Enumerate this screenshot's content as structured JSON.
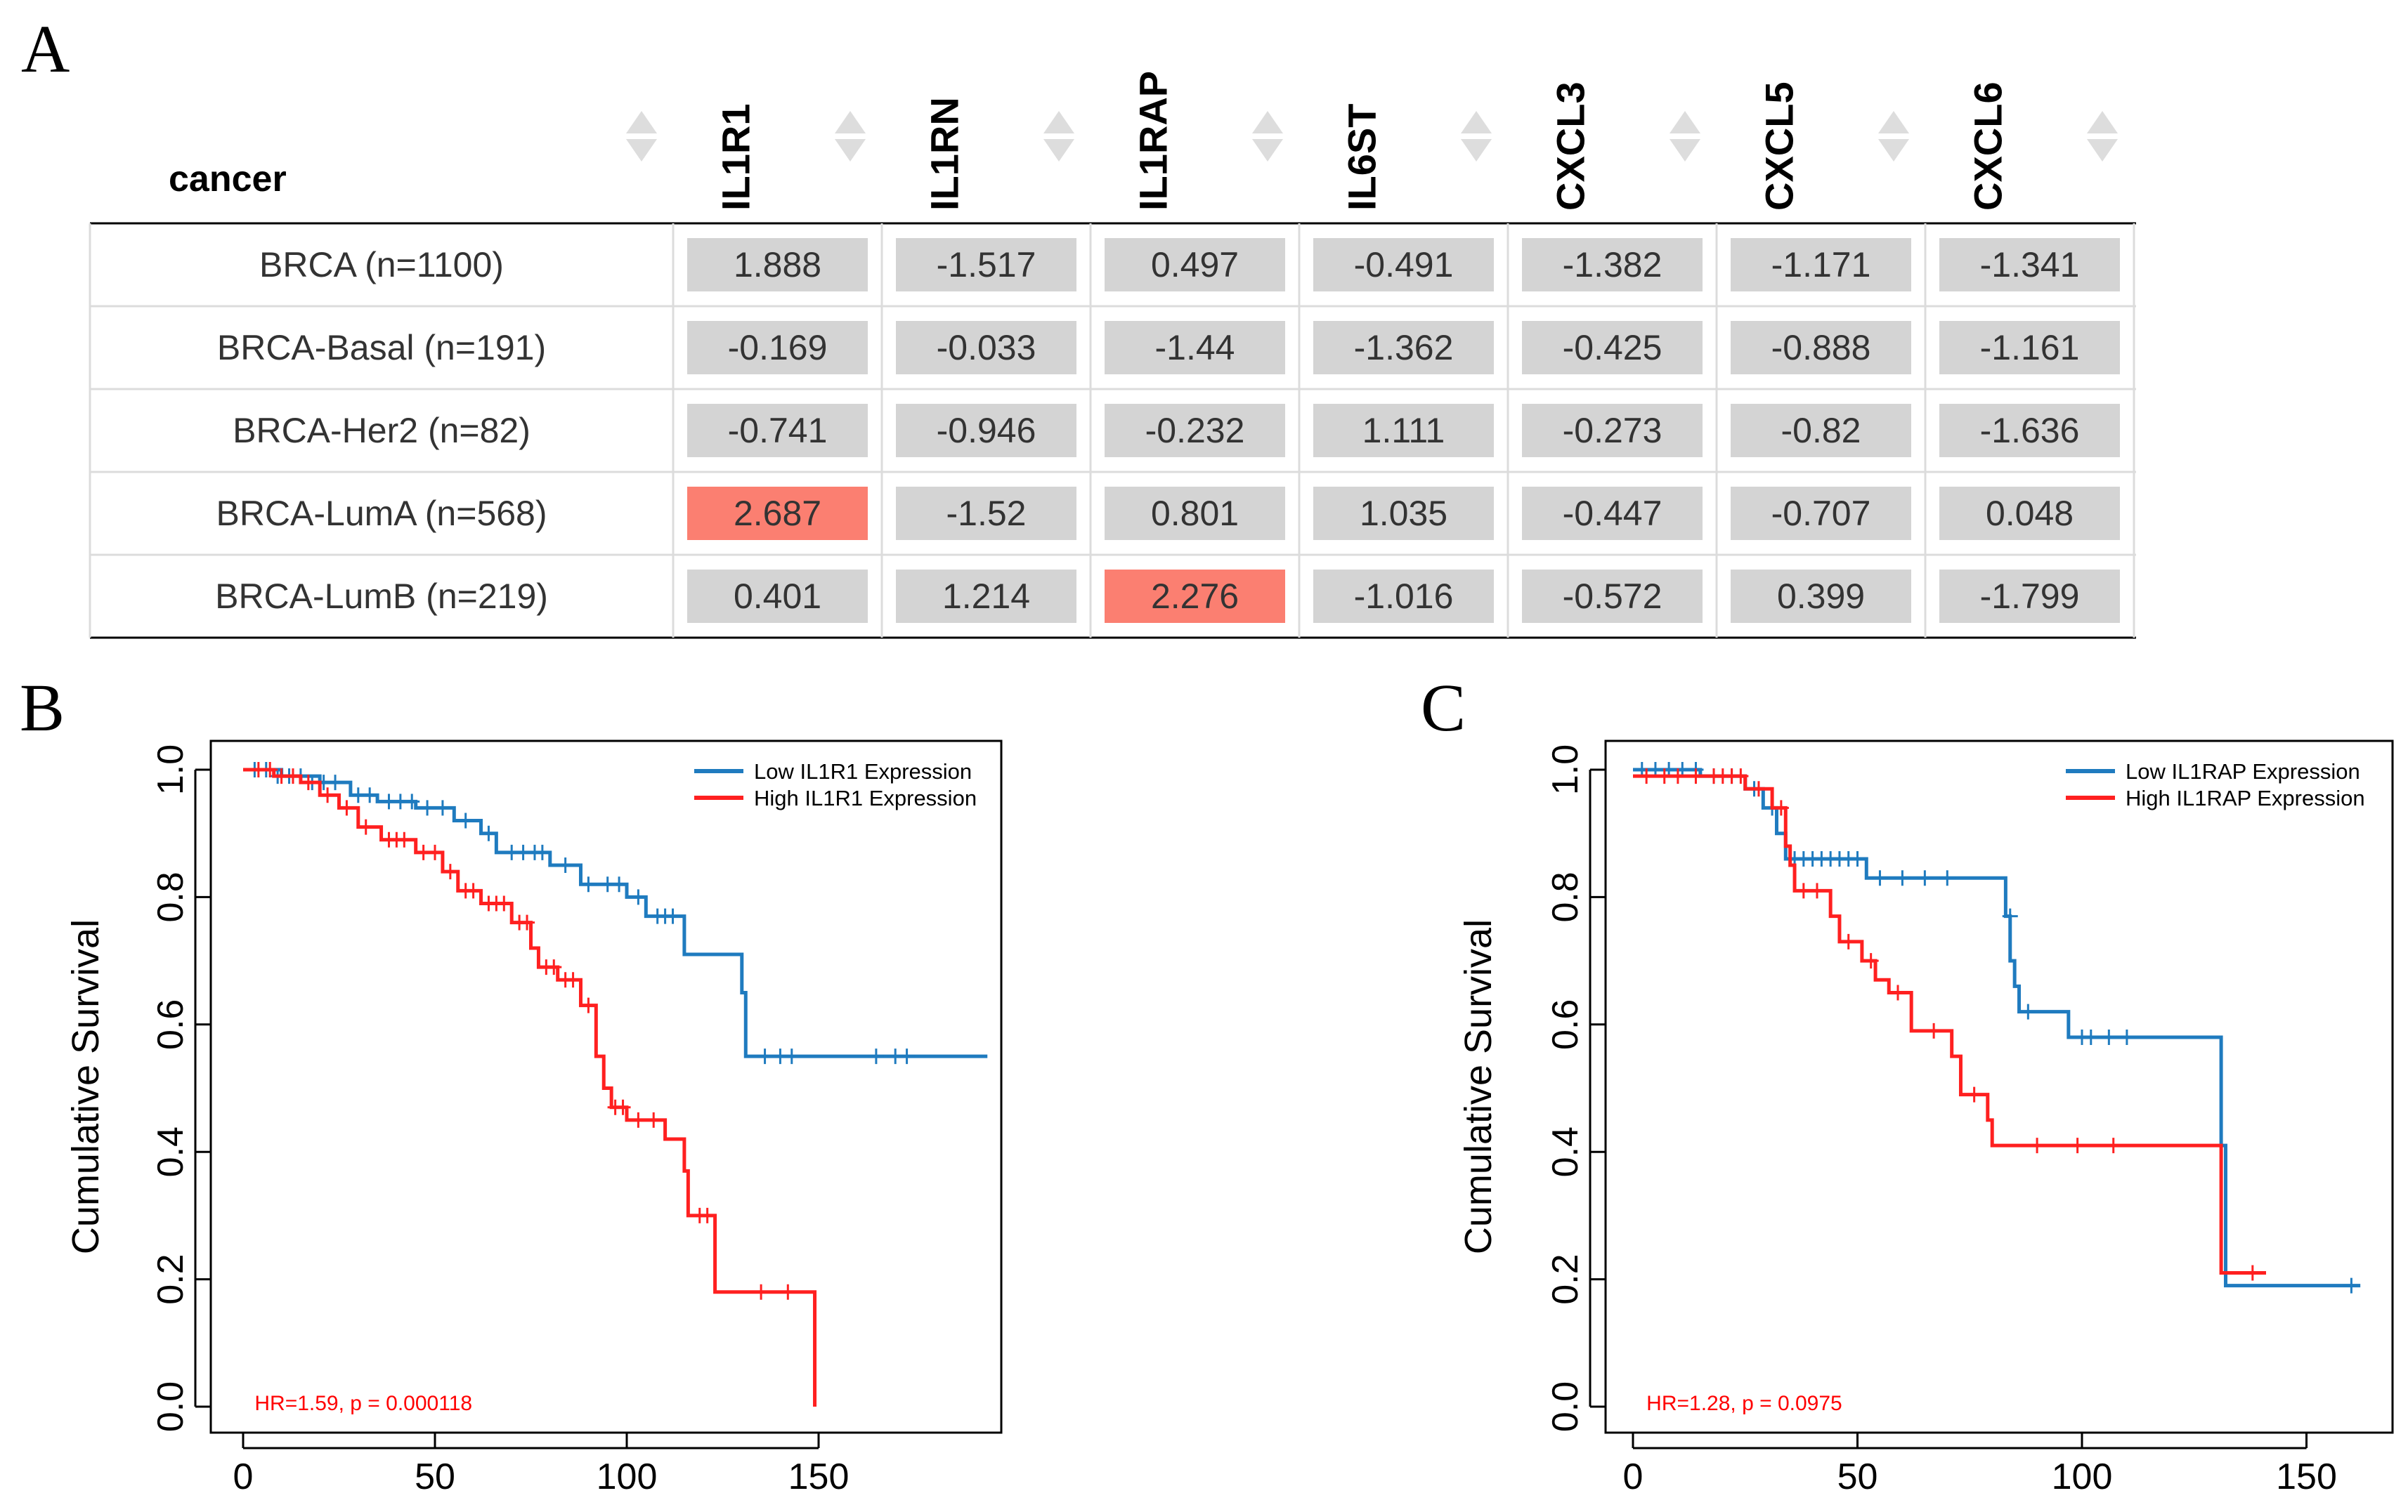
{
  "panels": {
    "a": "A",
    "b": "B",
    "c": "C"
  },
  "table": {
    "corner_header": "cancer",
    "genes": [
      "IL1R1",
      "IL1RN",
      "IL1RAP",
      "IL6ST",
      "CXCL3",
      "CXCL5",
      "CXCL6"
    ],
    "rows": [
      {
        "label": "BRCA (n=1100)",
        "values": [
          "1.888",
          "-1.517",
          "0.497",
          "-0.491",
          "-1.382",
          "-1.171",
          "-1.341"
        ]
      },
      {
        "label": "BRCA-Basal (n=191)",
        "values": [
          "-0.169",
          "-0.033",
          "-1.44",
          "-1.362",
          "-0.425",
          "-0.888",
          "-1.161"
        ]
      },
      {
        "label": "BRCA-Her2 (n=82)",
        "values": [
          "-0.741",
          "-0.946",
          "-0.232",
          "1.111",
          "-0.273",
          "-0.82",
          "-1.636"
        ]
      },
      {
        "label": "BRCA-LumA (n=568)",
        "values": [
          "2.687",
          "-1.52",
          "0.801",
          "1.035",
          "-0.447",
          "-0.707",
          "0.048"
        ]
      },
      {
        "label": "BRCA-LumB (n=219)",
        "values": [
          "0.401",
          "1.214",
          "2.276",
          "-1.016",
          "-0.572",
          "0.399",
          "-1.799"
        ]
      }
    ],
    "colors": {
      "cell": "#d4d4d4",
      "highlight": "#fb7f71",
      "sort_icon": "#dddddd"
    }
  },
  "chart_data": [
    {
      "type": "line",
      "panel": "B",
      "ylabel": "Cumulative Survival",
      "xlabel": "",
      "xlim": [
        0,
        200
      ],
      "ylim": [
        0,
        1
      ],
      "x_ticks": [
        0,
        50,
        100,
        150
      ],
      "y_ticks": [
        0.0,
        0.2,
        0.4,
        0.6,
        0.8,
        1.0
      ],
      "x_tick_labels": [
        "0",
        "50",
        "100",
        "150"
      ],
      "y_tick_labels": [
        "0.0",
        "0.2",
        "0.4",
        "0.6",
        "0.8",
        "1.0"
      ],
      "annotation": "HR=1.59, p = 0.000118",
      "series": [
        {
          "name": "Low IL1R1 Expression",
          "color": "#1f7bbf",
          "steps": [
            [
              0,
              1.0
            ],
            [
              10,
              0.99
            ],
            [
              20,
              0.98
            ],
            [
              28,
              0.96
            ],
            [
              35,
              0.95
            ],
            [
              45,
              0.94
            ],
            [
              55,
              0.92
            ],
            [
              62,
              0.9
            ],
            [
              66,
              0.87
            ],
            [
              80,
              0.85
            ],
            [
              88,
              0.82
            ],
            [
              100,
              0.8
            ],
            [
              105,
              0.77
            ],
            [
              115,
              0.71
            ],
            [
              130,
              0.65
            ],
            [
              131,
              0.55
            ],
            [
              194,
              0.55
            ]
          ],
          "censors": [
            [
              3,
              1.0
            ],
            [
              6,
              1.0
            ],
            [
              9,
              0.99
            ],
            [
              12,
              0.99
            ],
            [
              15,
              0.99
            ],
            [
              18,
              0.98
            ],
            [
              21,
              0.98
            ],
            [
              24,
              0.98
            ],
            [
              30,
              0.96
            ],
            [
              33,
              0.96
            ],
            [
              38,
              0.95
            ],
            [
              41,
              0.95
            ],
            [
              44,
              0.95
            ],
            [
              48,
              0.94
            ],
            [
              52,
              0.94
            ],
            [
              58,
              0.92
            ],
            [
              64,
              0.9
            ],
            [
              70,
              0.87
            ],
            [
              73,
              0.87
            ],
            [
              76,
              0.87
            ],
            [
              78,
              0.87
            ],
            [
              84,
              0.85
            ],
            [
              90,
              0.82
            ],
            [
              95,
              0.82
            ],
            [
              98,
              0.82
            ],
            [
              103,
              0.8
            ],
            [
              108,
              0.77
            ],
            [
              110,
              0.77
            ],
            [
              112,
              0.77
            ],
            [
              136,
              0.55
            ],
            [
              140,
              0.55
            ],
            [
              143,
              0.55
            ],
            [
              165,
              0.55
            ],
            [
              170,
              0.55
            ],
            [
              173,
              0.55
            ]
          ]
        },
        {
          "name": "High IL1R1 Expression",
          "color": "#ff2020",
          "steps": [
            [
              0,
              1.0
            ],
            [
              8,
              0.99
            ],
            [
              15,
              0.98
            ],
            [
              20,
              0.96
            ],
            [
              25,
              0.94
            ],
            [
              30,
              0.91
            ],
            [
              36,
              0.89
            ],
            [
              45,
              0.87
            ],
            [
              52,
              0.84
            ],
            [
              56,
              0.81
            ],
            [
              62,
              0.79
            ],
            [
              70,
              0.76
            ],
            [
              75,
              0.72
            ],
            [
              77,
              0.69
            ],
            [
              82,
              0.67
            ],
            [
              88,
              0.63
            ],
            [
              92,
              0.55
            ],
            [
              94,
              0.5
            ],
            [
              96,
              0.47
            ],
            [
              100,
              0.45
            ],
            [
              110,
              0.42
            ],
            [
              115,
              0.37
            ],
            [
              116,
              0.3
            ],
            [
              122,
              0.3
            ],
            [
              123,
              0.18
            ],
            [
              149,
              0.18
            ],
            [
              149,
              0.0
            ]
          ],
          "censors": [
            [
              4,
              1.0
            ],
            [
              7,
              1.0
            ],
            [
              10,
              0.99
            ],
            [
              13,
              0.99
            ],
            [
              17,
              0.98
            ],
            [
              22,
              0.96
            ],
            [
              27,
              0.94
            ],
            [
              32,
              0.91
            ],
            [
              38,
              0.89
            ],
            [
              40,
              0.89
            ],
            [
              42,
              0.89
            ],
            [
              47,
              0.87
            ],
            [
              50,
              0.87
            ],
            [
              54,
              0.84
            ],
            [
              58,
              0.81
            ],
            [
              60,
              0.81
            ],
            [
              64,
              0.79
            ],
            [
              66,
              0.79
            ],
            [
              68,
              0.79
            ],
            [
              72,
              0.76
            ],
            [
              74,
              0.76
            ],
            [
              79,
              0.69
            ],
            [
              81,
              0.69
            ],
            [
              84,
              0.67
            ],
            [
              86,
              0.67
            ],
            [
              90,
              0.63
            ],
            [
              97,
              0.47
            ],
            [
              99,
              0.47
            ],
            [
              103,
              0.45
            ],
            [
              107,
              0.45
            ],
            [
              119,
              0.3
            ],
            [
              121,
              0.3
            ],
            [
              135,
              0.18
            ],
            [
              142,
              0.18
            ]
          ]
        }
      ]
    },
    {
      "type": "line",
      "panel": "C",
      "ylabel": "Cumulative Survival",
      "xlabel": "",
      "xlim": [
        0,
        165
      ],
      "ylim": [
        0,
        1
      ],
      "x_ticks": [
        0,
        50,
        100,
        150
      ],
      "y_ticks": [
        0.0,
        0.2,
        0.4,
        0.6,
        0.8,
        1.0
      ],
      "x_tick_labels": [
        "0",
        "50",
        "100",
        "150"
      ],
      "y_tick_labels": [
        "0.0",
        "0.2",
        "0.4",
        "0.6",
        "0.8",
        "1.0"
      ],
      "annotation": "HR=1.28, p = 0.0975",
      "series": [
        {
          "name": "Low IL1RAP Expression",
          "color": "#1f7bbf",
          "steps": [
            [
              0,
              1.0
            ],
            [
              15,
              0.99
            ],
            [
              25,
              0.97
            ],
            [
              29,
              0.94
            ],
            [
              32,
              0.9
            ],
            [
              34,
              0.86
            ],
            [
              52,
              0.83
            ],
            [
              81,
              0.83
            ],
            [
              83,
              0.77
            ],
            [
              84,
              0.7
            ],
            [
              85,
              0.66
            ],
            [
              86,
              0.62
            ],
            [
              93,
              0.62
            ],
            [
              97,
              0.58
            ],
            [
              131,
              0.58
            ],
            [
              131,
              0.41
            ],
            [
              132,
              0.19
            ],
            [
              162,
              0.19
            ]
          ],
          "censors": [
            [
              2,
              1.0
            ],
            [
              5,
              1.0
            ],
            [
              8,
              1.0
            ],
            [
              11,
              1.0
            ],
            [
              14,
              1.0
            ],
            [
              18,
              0.99
            ],
            [
              22,
              0.99
            ],
            [
              27,
              0.97
            ],
            [
              31,
              0.94
            ],
            [
              36,
              0.86
            ],
            [
              38,
              0.86
            ],
            [
              40,
              0.86
            ],
            [
              42,
              0.86
            ],
            [
              44,
              0.86
            ],
            [
              46,
              0.86
            ],
            [
              48,
              0.86
            ],
            [
              50,
              0.86
            ],
            [
              55,
              0.83
            ],
            [
              60,
              0.83
            ],
            [
              65,
              0.83
            ],
            [
              70,
              0.83
            ],
            [
              84,
              0.77
            ],
            [
              88,
              0.62
            ],
            [
              100,
              0.58
            ],
            [
              102,
              0.58
            ],
            [
              106,
              0.58
            ],
            [
              110,
              0.58
            ],
            [
              160,
              0.19
            ]
          ]
        },
        {
          "name": "High IL1RAP Expression",
          "color": "#ff2020",
          "steps": [
            [
              0,
              0.99
            ],
            [
              25,
              0.97
            ],
            [
              31,
              0.94
            ],
            [
              34,
              0.88
            ],
            [
              35,
              0.85
            ],
            [
              36,
              0.81
            ],
            [
              43,
              0.81
            ],
            [
              44,
              0.77
            ],
            [
              46,
              0.73
            ],
            [
              51,
              0.7
            ],
            [
              54,
              0.67
            ],
            [
              57,
              0.65
            ],
            [
              61,
              0.65
            ],
            [
              62,
              0.59
            ],
            [
              70,
              0.59
            ],
            [
              71,
              0.55
            ],
            [
              73,
              0.49
            ],
            [
              78,
              0.49
            ],
            [
              79,
              0.45
            ],
            [
              80,
              0.41
            ],
            [
              131,
              0.41
            ],
            [
              131,
              0.21
            ],
            [
              141,
              0.21
            ]
          ],
          "censors": [
            [
              3,
              0.99
            ],
            [
              7,
              0.99
            ],
            [
              10,
              0.99
            ],
            [
              14,
              0.99
            ],
            [
              18,
              0.99
            ],
            [
              20,
              0.99
            ],
            [
              22,
              0.99
            ],
            [
              24,
              0.99
            ],
            [
              28,
              0.97
            ],
            [
              33,
              0.94
            ],
            [
              38,
              0.81
            ],
            [
              41,
              0.81
            ],
            [
              48,
              0.73
            ],
            [
              53,
              0.7
            ],
            [
              59,
              0.65
            ],
            [
              67,
              0.59
            ],
            [
              76,
              0.49
            ],
            [
              90,
              0.41
            ],
            [
              99,
              0.41
            ],
            [
              107,
              0.41
            ],
            [
              138,
              0.21
            ]
          ]
        }
      ]
    }
  ]
}
